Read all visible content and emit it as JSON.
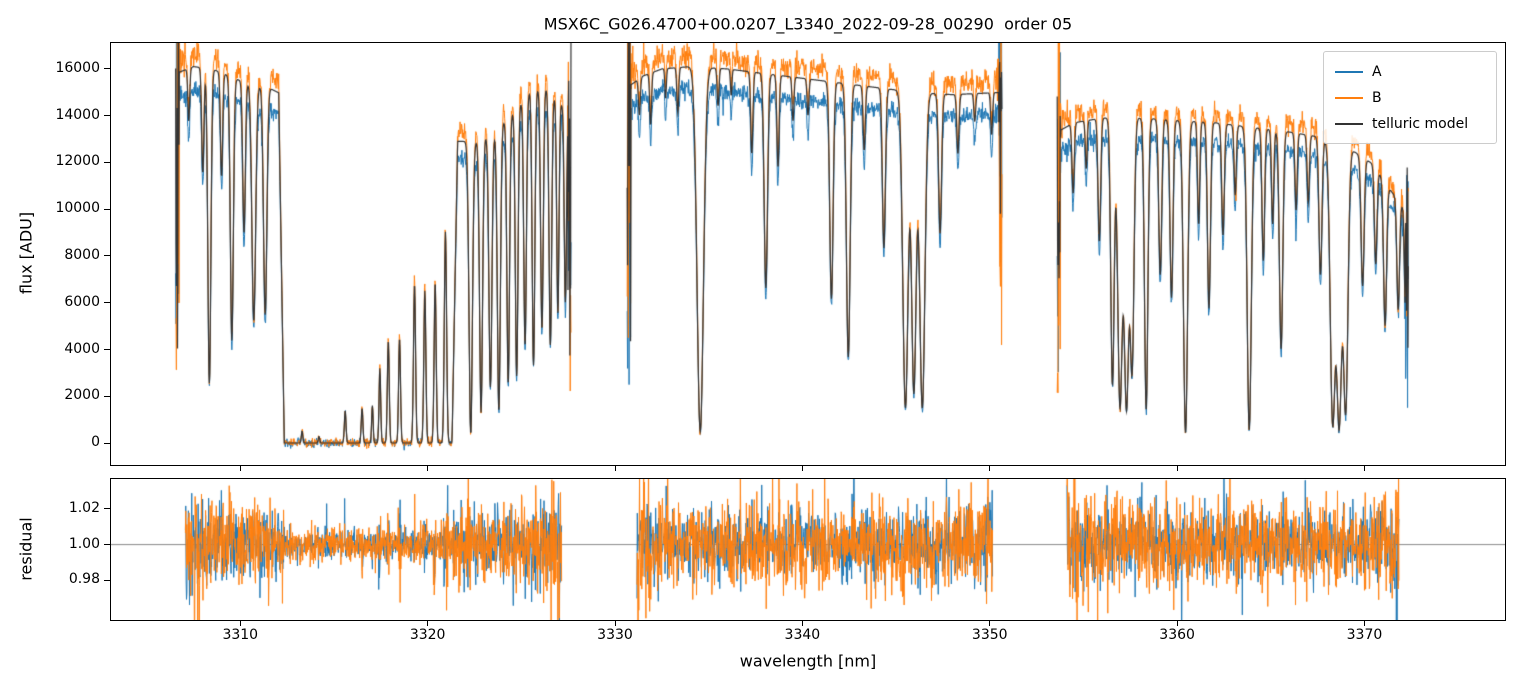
{
  "chart_data": {
    "type": "line",
    "title": "MSX6C_G026.4700+00.0207_L3340_2022-09-28_00290  order 05",
    "xlabel": "wavelength [nm]",
    "xlim": [
      3303.1,
      3377.5
    ],
    "xticks": [
      3310,
      3320,
      3330,
      3340,
      3350,
      3360,
      3370
    ],
    "xticklabels": [
      "3310",
      "3320",
      "3330",
      "3340",
      "3350",
      "3360",
      "3370"
    ],
    "grid": false,
    "legend_position": "upper right",
    "panels": {
      "flux": {
        "ylabel": "flux [ADU]",
        "ylim": [
          -940,
          17110
        ],
        "yticks": [
          0,
          2000,
          4000,
          6000,
          8000,
          10000,
          12000,
          14000,
          16000
        ],
        "yticklabels": [
          "0",
          "2000",
          "4000",
          "6000",
          "8000",
          "10000",
          "12000",
          "14000",
          "16000"
        ]
      },
      "residual": {
        "ylabel": "residual",
        "ylim": [
          0.9578,
          1.0367
        ],
        "yticks": [
          0.98,
          1.0,
          1.02
        ],
        "yticklabels": [
          "0.98",
          "1.00",
          "1.02"
        ],
        "refline": 1.0
      }
    },
    "series": [
      {
        "name": "A",
        "color": "#1f77b4",
        "scale": 0.94,
        "noise": 0.011
      },
      {
        "name": "B",
        "color": "#ff7f0e",
        "scale": 1.03,
        "noise": 0.014
      },
      {
        "name": "telluric model",
        "color": "#333333"
      }
    ],
    "sampling_step": 0.02,
    "seed": 7,
    "additive_noise_adu": 90,
    "segments": [
      {
        "xrange": [
          3306.55,
          3327.65
        ],
        "continuum": [
          [
            3306.55,
            15800
          ],
          [
            3307.5,
            16100
          ],
          [
            3308.5,
            16000
          ],
          [
            3310,
            15500
          ],
          [
            3311.5,
            15200
          ],
          [
            3313,
            14600
          ],
          [
            3315,
            13900
          ],
          [
            3317,
            13400
          ],
          [
            3319,
            13100
          ],
          [
            3321,
            12900
          ],
          [
            3322.5,
            12900
          ],
          [
            3323.5,
            13300
          ],
          [
            3324.5,
            14100
          ],
          [
            3325.5,
            15100
          ],
          [
            3326.3,
            15200
          ],
          [
            3327,
            14600
          ],
          [
            3327.65,
            14100
          ]
        ],
        "band": {
          "x0": 3312.35,
          "x1": 3321.3,
          "edge": 0.3
        },
        "windows": [
          [
            3313.3,
            0.035,
            0.04
          ],
          [
            3314.2,
            0.02,
            0.04
          ],
          [
            3315.6,
            0.1,
            0.045
          ],
          [
            3316.5,
            0.11,
            0.045
          ],
          [
            3317.05,
            0.12,
            0.04
          ],
          [
            3317.45,
            0.24,
            0.045
          ],
          [
            3317.9,
            0.33,
            0.05
          ],
          [
            3318.5,
            0.34,
            0.05
          ],
          [
            3319.3,
            0.52,
            0.055
          ],
          [
            3319.85,
            0.5,
            0.055
          ],
          [
            3320.4,
            0.53,
            0.055
          ],
          [
            3320.95,
            0.7,
            0.06
          ]
        ],
        "lines": [
          [
            3307.25,
            0.14,
            0.05
          ],
          [
            3308.0,
            0.28,
            0.06
          ],
          [
            3308.35,
            0.84,
            0.08
          ],
          [
            3309.0,
            0.28,
            0.06
          ],
          [
            3309.55,
            0.72,
            0.08
          ],
          [
            3310.2,
            0.42,
            0.07
          ],
          [
            3310.72,
            0.66,
            0.1
          ],
          [
            3311.33,
            0.64,
            0.09
          ],
          [
            3322.3,
            0.97,
            0.09
          ],
          [
            3322.85,
            0.9,
            0.08
          ],
          [
            3323.35,
            0.82,
            0.08
          ],
          [
            3323.8,
            0.9,
            0.08
          ],
          [
            3324.3,
            0.82,
            0.07
          ],
          [
            3324.75,
            0.8,
            0.07
          ],
          [
            3325.2,
            0.72,
            0.07
          ],
          [
            3325.65,
            0.78,
            0.07
          ],
          [
            3326.1,
            0.68,
            0.07
          ],
          [
            3326.55,
            0.72,
            0.07
          ],
          [
            3326.95,
            0.62,
            0.06
          ],
          [
            3327.35,
            0.58,
            0.06
          ]
        ]
      },
      {
        "xrange": [
          3330.65,
          3350.65
        ],
        "continuum": [
          [
            3330.65,
            15200
          ],
          [
            3331.5,
            15700
          ],
          [
            3332.5,
            16000
          ],
          [
            3334,
            16100
          ],
          [
            3336,
            16000
          ],
          [
            3338,
            15800
          ],
          [
            3340,
            15600
          ],
          [
            3342,
            15400
          ],
          [
            3344,
            15200
          ],
          [
            3346,
            15000
          ],
          [
            3348,
            14900
          ],
          [
            3350.65,
            15000
          ]
        ],
        "lines": [
          [
            3331.3,
            0.1,
            0.05
          ],
          [
            3331.9,
            0.14,
            0.05
          ],
          [
            3332.7,
            0.08,
            0.04
          ],
          [
            3333.35,
            0.12,
            0.05
          ],
          [
            3334.55,
            0.97,
            0.17
          ],
          [
            3335.5,
            0.1,
            0.05
          ],
          [
            3336.2,
            0.07,
            0.04
          ],
          [
            3337.3,
            0.22,
            0.06
          ],
          [
            3338.05,
            0.58,
            0.09
          ],
          [
            3338.7,
            0.25,
            0.06
          ],
          [
            3339.5,
            0.12,
            0.05
          ],
          [
            3340.3,
            0.1,
            0.05
          ],
          [
            3341.55,
            0.6,
            0.09
          ],
          [
            3342.45,
            0.76,
            0.1
          ],
          [
            3343.3,
            0.18,
            0.06
          ],
          [
            3344.35,
            0.45,
            0.08
          ],
          [
            3345.5,
            0.9,
            0.14
          ],
          [
            3345.95,
            0.85,
            0.12
          ],
          [
            3346.4,
            0.9,
            0.14
          ],
          [
            3347.35,
            0.4,
            0.08
          ],
          [
            3348.3,
            0.17,
            0.06
          ],
          [
            3349.2,
            0.08,
            0.05
          ],
          [
            3350.1,
            0.12,
            0.05
          ]
        ]
      },
      {
        "xrange": [
          3353.6,
          3372.35
        ],
        "continuum": [
          [
            3353.6,
            13300
          ],
          [
            3354.5,
            13700
          ],
          [
            3356,
            13900
          ],
          [
            3358,
            13900
          ],
          [
            3360,
            13800
          ],
          [
            3362,
            13700
          ],
          [
            3364,
            13500
          ],
          [
            3366,
            13300
          ],
          [
            3367.5,
            13100
          ],
          [
            3369,
            12700
          ],
          [
            3370.5,
            11900
          ],
          [
            3371.3,
            10900
          ],
          [
            3372.35,
            9800
          ]
        ],
        "lines": [
          [
            3354.45,
            0.22,
            0.06
          ],
          [
            3355.15,
            0.15,
            0.05
          ],
          [
            3355.85,
            0.38,
            0.07
          ],
          [
            3356.55,
            0.82,
            0.09
          ],
          [
            3356.95,
            0.88,
            0.12
          ],
          [
            3357.3,
            0.88,
            0.12
          ],
          [
            3357.6,
            0.75,
            0.1
          ],
          [
            3358.35,
            0.9,
            0.09
          ],
          [
            3359.1,
            0.48,
            0.08
          ],
          [
            3359.7,
            0.55,
            0.08
          ],
          [
            3360.45,
            0.97,
            0.11
          ],
          [
            3361.15,
            0.32,
            0.06
          ],
          [
            3361.7,
            0.58,
            0.08
          ],
          [
            3362.45,
            0.35,
            0.07
          ],
          [
            3363.1,
            0.22,
            0.06
          ],
          [
            3363.85,
            0.96,
            0.11
          ],
          [
            3364.6,
            0.42,
            0.07
          ],
          [
            3365.1,
            0.3,
            0.06
          ],
          [
            3365.55,
            0.7,
            0.09
          ],
          [
            3366.35,
            0.25,
            0.06
          ],
          [
            3367.0,
            0.22,
            0.06
          ],
          [
            3367.65,
            0.45,
            0.08
          ],
          [
            3368.3,
            0.92,
            0.13
          ],
          [
            3368.65,
            0.92,
            0.13
          ],
          [
            3369.0,
            0.88,
            0.12
          ],
          [
            3369.9,
            0.45,
            0.08
          ],
          [
            3370.6,
            0.35,
            0.07
          ],
          [
            3371.1,
            0.55,
            0.08
          ],
          [
            3371.8,
            0.45,
            0.07
          ],
          [
            3372.2,
            0.5,
            0.06
          ]
        ]
      }
    ]
  }
}
